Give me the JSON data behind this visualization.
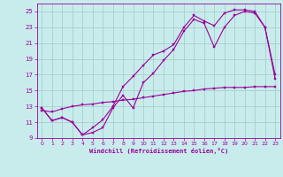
{
  "xlabel": "Windchill (Refroidissement éolien,°C)",
  "bg_color": "#c8ecec",
  "line_color": "#990099",
  "grid_color": "#aacccc",
  "xlim": [
    -0.5,
    23.5
  ],
  "ylim": [
    9,
    26
  ],
  "yticks": [
    9,
    11,
    13,
    15,
    17,
    19,
    21,
    23,
    25
  ],
  "xticks": [
    0,
    1,
    2,
    3,
    4,
    5,
    6,
    7,
    8,
    9,
    10,
    11,
    12,
    13,
    14,
    15,
    16,
    17,
    18,
    19,
    20,
    21,
    22,
    23
  ],
  "line1_x": [
    0,
    1,
    2,
    3,
    4,
    5,
    6,
    7,
    8,
    9,
    10,
    11,
    12,
    13,
    14,
    15,
    16,
    17,
    18,
    19,
    20,
    21,
    22,
    23
  ],
  "line1_y": [
    12.8,
    11.2,
    11.6,
    11.0,
    9.4,
    9.7,
    10.3,
    12.8,
    14.4,
    12.8,
    16.0,
    17.2,
    18.8,
    20.2,
    22.5,
    24.0,
    23.5,
    20.5,
    23.0,
    24.5,
    25.0,
    24.8,
    23.0,
    17.0
  ],
  "line2_x": [
    0,
    1,
    2,
    3,
    4,
    5,
    6,
    7,
    8,
    9,
    10,
    11,
    12,
    13,
    14,
    15,
    16,
    17,
    18,
    19,
    20,
    21,
    22,
    23
  ],
  "line2_y": [
    12.8,
    11.2,
    11.6,
    11.0,
    9.4,
    10.3,
    11.3,
    13.0,
    15.5,
    16.8,
    18.2,
    19.5,
    20.0,
    20.8,
    23.0,
    24.5,
    23.8,
    23.2,
    24.8,
    25.2,
    25.2,
    25.0,
    23.0,
    16.5
  ],
  "line3_x": [
    0,
    1,
    2,
    3,
    4,
    5,
    6,
    7,
    8,
    9,
    10,
    11,
    12,
    13,
    14,
    15,
    16,
    17,
    18,
    19,
    20,
    21,
    22,
    23
  ],
  "line3_y": [
    12.5,
    12.3,
    12.7,
    13.0,
    13.2,
    13.3,
    13.5,
    13.6,
    13.8,
    13.9,
    14.1,
    14.3,
    14.5,
    14.7,
    14.9,
    15.0,
    15.2,
    15.3,
    15.4,
    15.4,
    15.4,
    15.5,
    15.5,
    15.5
  ]
}
